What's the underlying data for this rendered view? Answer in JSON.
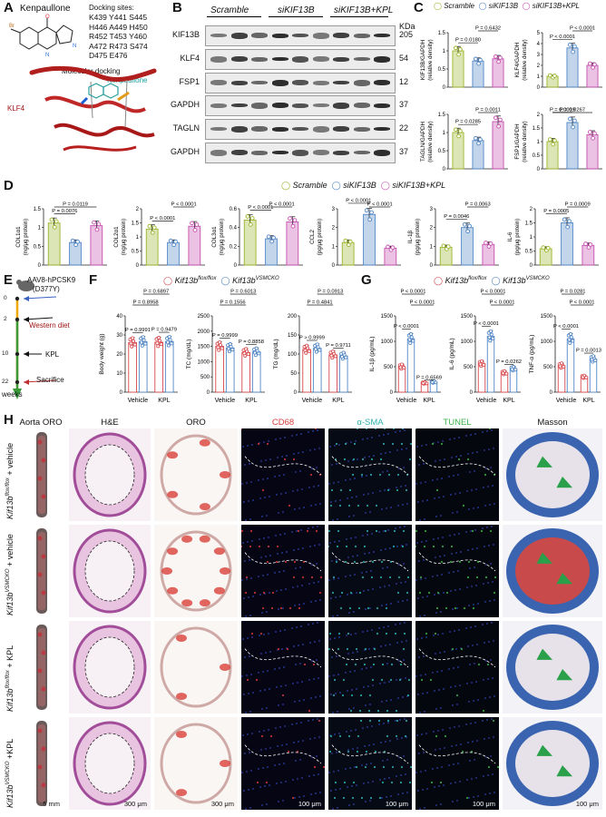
{
  "panels": {
    "A": {
      "letter": "A",
      "compound": "Kenpaullone",
      "docking_title": "Docking sites:",
      "docking_sites": [
        "K439 Y441 S445",
        "H446 A449 H450",
        "R452 T453 Y460",
        "A472 R473 S474",
        "D475 E476"
      ],
      "molecular_docking": "Molecular docking",
      "ligand_label": "Kenpaullone",
      "protein_label": "KLF4"
    },
    "B": {
      "letter": "B",
      "groups": [
        "Scramble",
        "siKIF13B",
        "siKIF13B+KPL"
      ],
      "kda_header": "KDa",
      "blots": [
        {
          "name": "KIF13B",
          "kda": "205"
        },
        {
          "name": "KLF4",
          "kda": "54"
        },
        {
          "name": "FSP1",
          "kda": "12"
        },
        {
          "name": "GAPDH",
          "kda": "37"
        },
        {
          "name": "TAGLN",
          "kda": "22"
        },
        {
          "name": "GAPDH",
          "kda": "37"
        }
      ]
    },
    "C": {
      "letter": "C",
      "legend": [
        "Scramble",
        "siKIF13B",
        "siKIF13B+KPL"
      ]
    },
    "D": {
      "letter": "D",
      "legend": [
        "Scramble",
        "siKIF13B",
        "siKIF13B+KPL"
      ]
    },
    "E": {
      "letter": "E",
      "virus": "AAV8-hPCSK9",
      "mutation": "(D377Y)",
      "diet": "Western diet",
      "treatment": "KPL",
      "endpoint": "Sacrifice",
      "weeks_label": "weeks",
      "timepoints": [
        "0",
        "2",
        "10",
        "22"
      ]
    },
    "F": {
      "letter": "F",
      "legend": [
        "Kif13b",
        "flox/flox",
        "Kif13b",
        "VSMCKO"
      ]
    },
    "G": {
      "letter": "G",
      "legend": [
        "Kif13b",
        "flox/flox",
        "Kif13b",
        "VSMCKO"
      ]
    },
    "H": {
      "letter": "H",
      "columns": [
        "Aorta ORO",
        "H&E",
        "ORO",
        "CD68",
        "α-SMA",
        "TUNEL",
        "Masson"
      ],
      "rows": [
        {
          "gene": "Kif13b",
          "sup": "flox/flox",
          "suffix": " + vehicle"
        },
        {
          "gene": "Kif13b",
          "sup": "VSMCKO",
          "suffix": " + vehicle"
        },
        {
          "gene": "Kif13b",
          "sup": "flox/flox",
          "suffix": " + KPL"
        },
        {
          "gene": "Kif13b",
          "sup": "VSMCKO",
          "suffix": " +KPL"
        }
      ],
      "scalebars": [
        "5 mm",
        "300 μm",
        "300 μm",
        "100 μm",
        "100 μm",
        "100 μm",
        "100 μm"
      ]
    }
  },
  "colors": {
    "scramble": "#9bb52a",
    "si": "#4f86c6",
    "kpl": "#c64fb0",
    "flox": "#d9474a",
    "ko": "#4f86c6",
    "cd68": "#d93b3b",
    "sma": "#2fb3b0",
    "tunel": "#3cb34a"
  },
  "chart_data": [
    {
      "id": "C1",
      "type": "bar",
      "ylabel": "KIF13B/GAPDH (relative density)",
      "categories": [
        "Scramble",
        "siKIF13B",
        "siKIF13B+KPL"
      ],
      "values": [
        1.0,
        0.72,
        0.78
      ],
      "ylim": [
        0,
        1.5
      ],
      "yticks": [
        0,
        0.5,
        1.0,
        1.5
      ],
      "pvalues": [
        {
          "a": 0,
          "b": 1,
          "label": "P = 0.0180"
        },
        {
          "a": 1,
          "b": 2,
          "label": "P = 0.6432"
        }
      ]
    },
    {
      "id": "C2",
      "type": "bar",
      "ylabel": "KLF4/GAPDH (relative density)",
      "categories": [
        "Scramble",
        "siKIF13B",
        "siKIF13B+KPL"
      ],
      "values": [
        1.0,
        3.6,
        2.0
      ],
      "ylim": [
        0,
        5
      ],
      "yticks": [
        0,
        1,
        2,
        3,
        4,
        5
      ],
      "pvalues": [
        {
          "a": 0,
          "b": 1,
          "label": "P < 0.0001"
        },
        {
          "a": 1,
          "b": 2,
          "label": "P < 0.0001"
        }
      ]
    },
    {
      "id": "C3",
      "type": "bar",
      "ylabel": "TAGLN/GAPDH (relative density)",
      "categories": [
        "Scramble",
        "siKIF13B",
        "siKIF13B+KPL"
      ],
      "values": [
        1.0,
        0.78,
        1.3
      ],
      "ylim": [
        0,
        1.5
      ],
      "yticks": [
        0,
        0.5,
        1.0,
        1.5
      ],
      "pvalues": [
        {
          "a": 0,
          "b": 1,
          "label": "P = 0.0285"
        },
        {
          "a": 1,
          "b": 2,
          "label": "P = 0.0011"
        }
      ]
    },
    {
      "id": "C4",
      "type": "bar",
      "ylabel": "FSP1/GAPDH (relative density)",
      "categories": [
        "Scramble",
        "siKIF13B",
        "siKIF13B+KPL"
      ],
      "values": [
        1.0,
        1.7,
        1.25
      ],
      "ylim": [
        0,
        2.0
      ],
      "yticks": [
        0,
        0.5,
        1.0,
        1.5,
        2.0
      ],
      "pvalues": [
        {
          "a": 0,
          "b": 1,
          "label": "P = 0.0019"
        },
        {
          "a": 0,
          "b": 2,
          "label": "P = 0.0267"
        }
      ]
    },
    {
      "id": "D1",
      "type": "bar",
      "ylabel": "COL1α1 (ng/μg protein)",
      "categories": [
        "Scramble",
        "siKIF13B",
        "siKIF13B+KPL"
      ],
      "values": [
        1.12,
        0.6,
        1.05
      ],
      "ylim": [
        0,
        1.5
      ],
      "yticks": [
        0,
        0.5,
        1.0,
        1.5
      ],
      "pvalues": [
        {
          "a": 0,
          "b": 1,
          "label": "P = 0.0076"
        },
        {
          "a": 0,
          "b": 2,
          "label": "P = 0.0119"
        }
      ]
    },
    {
      "id": "D2",
      "type": "bar",
      "ylabel": "COL2α1 (ng/μg protein)",
      "categories": [
        "Scramble",
        "siKIF13B",
        "siKIF13B+KPL"
      ],
      "values": [
        1.28,
        0.8,
        1.38
      ],
      "ylim": [
        0,
        2.0
      ],
      "yticks": [
        0,
        0.5,
        1.0,
        1.5,
        2.0
      ],
      "pvalues": [
        {
          "a": 0,
          "b": 1,
          "label": "P < 0.0001"
        },
        {
          "a": 1,
          "b": 2,
          "label": "P < 0.0001"
        }
      ]
    },
    {
      "id": "D3",
      "type": "bar",
      "ylabel": "COL3α1 (ng/μg protein)",
      "categories": [
        "Scramble",
        "siKIF13B",
        "siKIF13B+KPL"
      ],
      "values": [
        0.48,
        0.28,
        0.46
      ],
      "ylim": [
        0,
        0.6
      ],
      "yticks": [
        0,
        0.2,
        0.4,
        0.6
      ],
      "pvalues": [
        {
          "a": 0,
          "b": 1,
          "label": "P < 0.0001"
        },
        {
          "a": 1,
          "b": 2,
          "label": "P < 0.0001"
        }
      ]
    },
    {
      "id": "D4",
      "type": "bar",
      "ylabel": "CCL2 (pg/μg protein)",
      "categories": [
        "Scramble",
        "siKIF13B",
        "siKIF13B+KPL"
      ],
      "values": [
        1.2,
        2.7,
        0.9
      ],
      "ylim": [
        0,
        3
      ],
      "yticks": [
        0,
        1,
        2,
        3
      ],
      "pvalues": [
        {
          "a": 0,
          "b": 1,
          "label": "P < 0.0001"
        },
        {
          "a": 1,
          "b": 2,
          "label": "P < 0.0001"
        }
      ]
    },
    {
      "id": "D5",
      "type": "bar",
      "ylabel": "IL-1β (pg/μg protein)",
      "categories": [
        "Scramble",
        "siKIF13B",
        "siKIF13B+KPL"
      ],
      "values": [
        0.95,
        2.0,
        1.1
      ],
      "ylim": [
        0,
        3
      ],
      "yticks": [
        0,
        1,
        2,
        3
      ],
      "pvalues": [
        {
          "a": 0,
          "b": 1,
          "label": "P = 0.0046"
        },
        {
          "a": 1,
          "b": 2,
          "label": "P = 0.0063"
        }
      ]
    },
    {
      "id": "D6",
      "type": "bar",
      "ylabel": "IL-6 (pg/μg protein)",
      "categories": [
        "Scramble",
        "siKIF13B",
        "siKIF13B+KPL"
      ],
      "values": [
        0.58,
        1.5,
        0.7
      ],
      "ylim": [
        0,
        2.0
      ],
      "yticks": [
        0,
        0.5,
        1.0,
        1.5,
        2.0
      ],
      "pvalues": [
        {
          "a": 0,
          "b": 1,
          "label": "P = 0.0005"
        },
        {
          "a": 1,
          "b": 2,
          "label": "P = 0.0009"
        }
      ]
    },
    {
      "id": "F1",
      "type": "bar",
      "ylabel": "Body weight (g)",
      "categories": [
        "Vehicle",
        "KPL"
      ],
      "series": [
        "flox",
        "ko"
      ],
      "values": [
        [
          26,
          26.5
        ],
        [
          26.2,
          26.6
        ]
      ],
      "ylim": [
        0,
        40
      ],
      "yticks": [
        0,
        10,
        20,
        30,
        40
      ],
      "pvalues": [
        {
          "level": 0,
          "x1": 0,
          "x2": 1,
          "label": "P = 0.9991",
          "short": true
        },
        {
          "level": 0,
          "x1": 2,
          "x2": 3,
          "label": "P = 0.9479",
          "short": true
        },
        {
          "level": 1,
          "x1": 0,
          "x2": 2,
          "label": "P = 0.8958"
        },
        {
          "level": 2,
          "x1": 1,
          "x2": 3,
          "label": "P = 0.6897"
        }
      ]
    },
    {
      "id": "F2",
      "type": "bar",
      "ylabel": "TC (mg/dL)",
      "categories": [
        "Vehicle",
        "KPL"
      ],
      "series": [
        "flox",
        "ko"
      ],
      "values": [
        [
          1500,
          1450
        ],
        [
          1300,
          1320
        ]
      ],
      "ylim": [
        0,
        2500
      ],
      "yticks": [
        0,
        500,
        1000,
        1500,
        2000,
        2500
      ],
      "pvalues": [
        {
          "level": 0,
          "x1": 0,
          "x2": 1,
          "label": "P = 0.9999",
          "short": true
        },
        {
          "level": 0,
          "x1": 2,
          "x2": 3,
          "label": "P = 0.8858",
          "short": true
        },
        {
          "level": 1,
          "x1": 0,
          "x2": 2,
          "label": "P = 0.1556"
        },
        {
          "level": 2,
          "x1": 1,
          "x2": 3,
          "label": "P = 0.6013"
        }
      ]
    },
    {
      "id": "F3",
      "type": "bar",
      "ylabel": "TG (mg/dL)",
      "categories": [
        "Vehicle",
        "KPL"
      ],
      "series": [
        "flox",
        "ko"
      ],
      "values": [
        [
          112,
          115
        ],
        [
          98,
          95
        ]
      ],
      "ylim": [
        0,
        200
      ],
      "yticks": [
        0,
        50,
        100,
        150,
        200
      ],
      "pvalues": [
        {
          "level": 0,
          "x1": 0,
          "x2": 1,
          "label": "P > 0.9999",
          "short": true
        },
        {
          "level": 0,
          "x1": 2,
          "x2": 3,
          "label": "P = 0.9711",
          "short": true
        },
        {
          "level": 1,
          "x1": 0,
          "x2": 2,
          "label": "P = 0.4841"
        },
        {
          "level": 2,
          "x1": 1,
          "x2": 3,
          "label": "P = 0.0913"
        }
      ]
    },
    {
      "id": "G1",
      "type": "bar",
      "ylabel": "IL-1β (pg/mL)",
      "categories": [
        "Vehicle",
        "KPL"
      ],
      "series": [
        "flox",
        "ko"
      ],
      "values": [
        [
          500,
          1050
        ],
        [
          180,
          200
        ]
      ],
      "ylim": [
        0,
        1500
      ],
      "yticks": [
        0,
        500,
        1000,
        1500
      ],
      "pvalues": [
        {
          "level": 0,
          "x1": 0,
          "x2": 1,
          "label": "P < 0.0001",
          "short": true
        },
        {
          "level": 0,
          "x1": 2,
          "x2": 3,
          "label": "P = 0.6569",
          "short": true
        },
        {
          "level": 1,
          "x1": 1,
          "x2": 3,
          "label": "P < 0.0001"
        },
        {
          "level": 2,
          "x1": 0,
          "x2": 2,
          "label": "P < 0.0001"
        }
      ]
    },
    {
      "id": "G2",
      "type": "bar",
      "ylabel": "IL-6 (pg/mL)",
      "categories": [
        "Vehicle",
        "KPL"
      ],
      "series": [
        "flox",
        "ko"
      ],
      "values": [
        [
          560,
          1100
        ],
        [
          380,
          460
        ]
      ],
      "ylim": [
        0,
        1500
      ],
      "yticks": [
        0,
        500,
        1000,
        1500
      ],
      "pvalues": [
        {
          "level": 0,
          "x1": 0,
          "x2": 1,
          "label": "P < 0.0001",
          "short": true
        },
        {
          "level": 0,
          "x1": 2,
          "x2": 3,
          "label": "P = 0.0262",
          "short": true
        },
        {
          "level": 1,
          "x1": 1,
          "x2": 3,
          "label": "P < 0.0001"
        },
        {
          "level": 2,
          "x1": 0,
          "x2": 2,
          "label": "P < 0.0001"
        }
      ]
    },
    {
      "id": "G3",
      "type": "bar",
      "ylabel": "TNF-α (pg/mL)",
      "categories": [
        "Vehicle",
        "KPL"
      ],
      "series": [
        "flox",
        "ko"
      ],
      "values": [
        [
          520,
          1050
        ],
        [
          300,
          650
        ]
      ],
      "ylim": [
        0,
        1500
      ],
      "yticks": [
        0,
        500,
        1000,
        1500
      ],
      "pvalues": [
        {
          "level": 0,
          "x1": 0,
          "x2": 1,
          "label": "P < 0.0001",
          "short": true
        },
        {
          "level": 0,
          "x1": 2,
          "x2": 3,
          "label": "P = 0.0013",
          "short": true
        },
        {
          "level": 1,
          "x1": 1,
          "x2": 3,
          "label": "P < 0.0001"
        },
        {
          "level": 2,
          "x1": 0,
          "x2": 2,
          "label": "P = 0.0281"
        }
      ]
    }
  ]
}
